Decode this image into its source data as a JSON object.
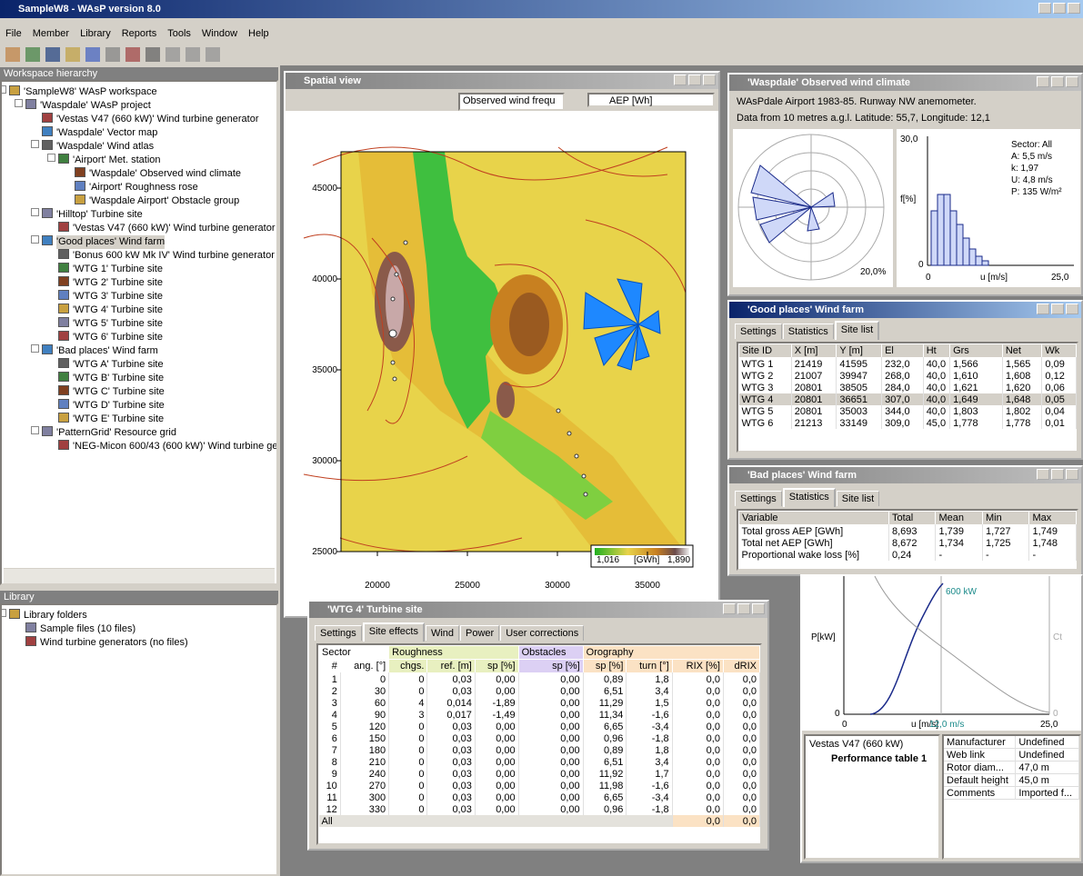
{
  "app": {
    "title": "SampleW8 - WAsP version 8.0",
    "menu": [
      "File",
      "Member",
      "Library",
      "Reports",
      "Tools",
      "Window",
      "Help"
    ]
  },
  "workspace": {
    "header": "Workspace hierarchy",
    "tree": {
      "label": "'SampleW8' WAsP workspace",
      "children": [
        {
          "label": "'Waspdale' WAsP project",
          "children": [
            {
              "label": "'Vestas V47 (660 kW)' Wind turbine generator"
            },
            {
              "label": "'Waspdale' Vector map"
            },
            {
              "label": "'Waspdale' Wind atlas",
              "children": [
                {
                  "label": "'Airport' Met. station",
                  "children": [
                    {
                      "label": "'Waspdale' Observed wind climate"
                    },
                    {
                      "label": "'Airport' Roughness rose"
                    },
                    {
                      "label": "'Waspdale Airport' Obstacle group"
                    }
                  ]
                }
              ]
            },
            {
              "label": "'Hilltop' Turbine site",
              "children": [
                {
                  "label": "'Vestas V47 (660 kW)' Wind turbine generator"
                }
              ]
            },
            {
              "label": "'Good places' Wind farm",
              "children": [
                {
                  "label": "'Bonus 600 kW Mk IV' Wind turbine generator"
                },
                {
                  "label": "'WTG 1' Turbine site"
                },
                {
                  "label": "'WTG 2' Turbine site"
                },
                {
                  "label": "'WTG 3' Turbine site"
                },
                {
                  "label": "'WTG 4' Turbine site"
                },
                {
                  "label": "'WTG 5' Turbine site"
                },
                {
                  "label": "'WTG 6' Turbine site"
                }
              ]
            },
            {
              "label": "'Bad places' Wind farm",
              "children": [
                {
                  "label": "'WTG A' Turbine site"
                },
                {
                  "label": "'WTG B' Turbine site"
                },
                {
                  "label": "'WTG C' Turbine site"
                },
                {
                  "label": "'WTG D' Turbine site"
                },
                {
                  "label": "'WTG E' Turbine site"
                }
              ]
            },
            {
              "label": "'PatternGrid' Resource grid",
              "children": [
                {
                  "label": "'NEG-Micon 600/43 (600 kW)' Wind turbine gen"
                }
              ]
            }
          ]
        }
      ]
    }
  },
  "library": {
    "header": "Library",
    "tree": {
      "label": "Library folders",
      "children": [
        {
          "label": "Sample files (10 files)"
        },
        {
          "label": "Wind turbine generators (no files)"
        }
      ]
    }
  },
  "spatial_view": {
    "title": "Spatial view",
    "dropdown1": "Observed wind frequ",
    "dropdown2": "AEP [Wh]",
    "xticks": [
      20000,
      25000,
      30000,
      35000
    ],
    "yticks": [
      45000,
      40000,
      35000,
      30000,
      25000
    ],
    "legend": {
      "min": "1,016",
      "unit": "[GWh]",
      "max": "1,890"
    }
  },
  "wind_climate": {
    "title": "'Waspdale' Observed wind climate",
    "line1": "WAsPdale Airport 1983-85. Runway NW anemometer.",
    "line2": "Data from 10 metres a.g.l. Latitude: 55,7, Longitude: 12,1",
    "rose_label": "20,0%",
    "hist": {
      "ymax": "30,0",
      "ylabel": "f[%]",
      "y0": "0",
      "x0": "0",
      "xlabel": "u [m/s]",
      "xmax": "25,0"
    },
    "stats": [
      "Sector: All",
      "A: 5,5 m/s",
      "k: 1,97",
      "U: 4,8 m/s",
      "P: 135 W/m²"
    ]
  },
  "good_farm": {
    "title": "'Good places' Wind farm",
    "tabs": [
      "Settings",
      "Statistics",
      "Site list"
    ],
    "columns": [
      "Site ID",
      "X [m]",
      "Y [m]",
      "El",
      "Ht",
      "Grs",
      "Net",
      "Wk"
    ],
    "rows": [
      [
        "WTG 1",
        "21419",
        "41595",
        "232,0",
        "40,0",
        "1,566",
        "1,565",
        "0,09"
      ],
      [
        "WTG 2",
        "21007",
        "39947",
        "268,0",
        "40,0",
        "1,610",
        "1,608",
        "0,12"
      ],
      [
        "WTG 3",
        "20801",
        "38505",
        "284,0",
        "40,0",
        "1,621",
        "1,620",
        "0,06"
      ],
      [
        "WTG 4",
        "20801",
        "36651",
        "307,0",
        "40,0",
        "1,649",
        "1,648",
        "0,05"
      ],
      [
        "WTG 5",
        "20801",
        "35003",
        "344,0",
        "40,0",
        "1,803",
        "1,802",
        "0,04"
      ],
      [
        "WTG 6",
        "21213",
        "33149",
        "309,0",
        "45,0",
        "1,778",
        "1,778",
        "0,01"
      ]
    ]
  },
  "bad_farm": {
    "title": "'Bad places' Wind farm",
    "tabs": [
      "Settings",
      "Statistics",
      "Site list"
    ],
    "columns": [
      "Variable",
      "Total",
      "Mean",
      "Min",
      "Max"
    ],
    "rows": [
      [
        "Total gross AEP [GWh]",
        "8,693",
        "1,739",
        "1,727",
        "1,749"
      ],
      [
        "Total net AEP [GWh]",
        "8,672",
        "1,734",
        "1,725",
        "1,748"
      ],
      [
        "Proportional wake loss [%]",
        "0,24",
        "-",
        "-",
        "-"
      ]
    ]
  },
  "power_curve": {
    "power_label": "600 kW",
    "ylabel": "P[kW]",
    "ct": "Ct",
    "y0": "0",
    "y0_right": "0",
    "x0": "0",
    "xlabel": "u [m/s]",
    "xmark": "12,0 m/s",
    "xmax": "25,0",
    "tree_root": "Vestas V47 (660 kW)",
    "tree_child": "Performance table 1",
    "props": [
      [
        "Manufacturer",
        "Undefined"
      ],
      [
        "Web link",
        "Undefined"
      ],
      [
        "Rotor diam...",
        "47,0 m"
      ],
      [
        "Default height",
        "45,0 m"
      ],
      [
        "Comments",
        "Imported f..."
      ]
    ]
  },
  "turbine_site": {
    "title": "'WTG 4' Turbine site",
    "tabs": [
      "Settings",
      "Site effects",
      "Wind",
      "Power",
      "User corrections"
    ],
    "groups": [
      "Sector",
      "Roughness",
      "Obstacles",
      "Orography"
    ],
    "columns": [
      "#",
      "ang. [°]",
      "chgs.",
      "ref. [m]",
      "sp [%]",
      "sp [%]",
      "sp [%]",
      "turn [°]",
      "RIX [%]",
      "dRIX"
    ],
    "rows": [
      [
        "1",
        "0",
        "0",
        "0,03",
        "0,00",
        "0,00",
        "0,89",
        "1,8",
        "0,0",
        "0,0"
      ],
      [
        "2",
        "30",
        "0",
        "0,03",
        "0,00",
        "0,00",
        "6,51",
        "3,4",
        "0,0",
        "0,0"
      ],
      [
        "3",
        "60",
        "4",
        "0,014",
        "-1,89",
        "0,00",
        "11,29",
        "1,5",
        "0,0",
        "0,0"
      ],
      [
        "4",
        "90",
        "3",
        "0,017",
        "-1,49",
        "0,00",
        "11,34",
        "-1,6",
        "0,0",
        "0,0"
      ],
      [
        "5",
        "120",
        "0",
        "0,03",
        "0,00",
        "0,00",
        "6,65",
        "-3,4",
        "0,0",
        "0,0"
      ],
      [
        "6",
        "150",
        "0",
        "0,03",
        "0,00",
        "0,00",
        "0,96",
        "-1,8",
        "0,0",
        "0,0"
      ],
      [
        "7",
        "180",
        "0",
        "0,03",
        "0,00",
        "0,00",
        "0,89",
        "1,8",
        "0,0",
        "0,0"
      ],
      [
        "8",
        "210",
        "0",
        "0,03",
        "0,00",
        "0,00",
        "6,51",
        "3,4",
        "0,0",
        "0,0"
      ],
      [
        "9",
        "240",
        "0",
        "0,03",
        "0,00",
        "0,00",
        "11,92",
        "1,7",
        "0,0",
        "0,0"
      ],
      [
        "10",
        "270",
        "0",
        "0,03",
        "0,00",
        "0,00",
        "11,98",
        "-1,6",
        "0,0",
        "0,0"
      ],
      [
        "11",
        "300",
        "0",
        "0,03",
        "0,00",
        "0,00",
        "6,65",
        "-3,4",
        "0,0",
        "0,0"
      ],
      [
        "12",
        "330",
        "0",
        "0,03",
        "0,00",
        "0,00",
        "0,96",
        "-1,8",
        "0,0",
        "0,0"
      ]
    ],
    "total": [
      "All",
      "0,0",
      "0,0"
    ]
  }
}
